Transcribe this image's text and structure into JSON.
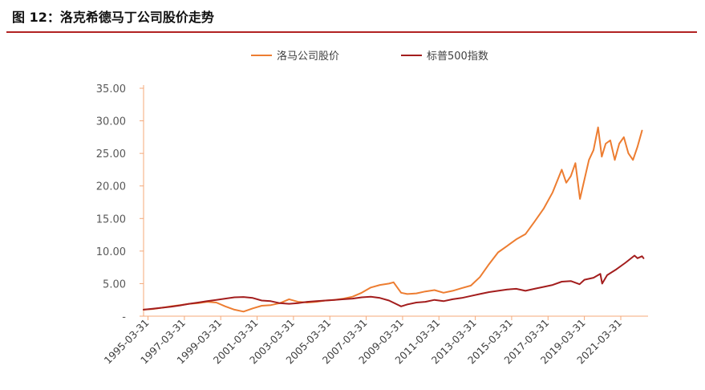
{
  "header": {
    "title": "图 12：洛克希德马丁公司股价走势",
    "rule_color": "#b22222"
  },
  "chart_data": {
    "type": "line",
    "title": "",
    "xlabel": "",
    "ylabel": "",
    "legend_position": "top-center",
    "grid": false,
    "x_ticks": [
      "1995-03-31",
      "1997-03-31",
      "1999-03-31",
      "2001-03-31",
      "2003-03-31",
      "2005-03-31",
      "2007-03-31",
      "2009-03-31",
      "2011-03-31",
      "2013-03-31",
      "2015-03-31",
      "2017-03-31",
      "2019-03-31",
      "2021-03-31"
    ],
    "y_ticks": [
      "-",
      "5.00",
      "10.00",
      "15.00",
      "20.00",
      "25.00",
      "30.00",
      "35.00"
    ],
    "ylim": [
      0,
      35
    ],
    "xlim": [
      "1995-01-01",
      "2022-09-30"
    ],
    "axis_color": "#f4a97a",
    "series": [
      {
        "name": "洛马公司股价",
        "color": "#ed7d31",
        "points": [
          [
            "1995-01-01",
            1.0
          ],
          [
            "1995-07-01",
            1.1
          ],
          [
            "1996-01-01",
            1.3
          ],
          [
            "1996-07-01",
            1.5
          ],
          [
            "1997-01-01",
            1.7
          ],
          [
            "1997-07-01",
            1.9
          ],
          [
            "1998-01-01",
            2.0
          ],
          [
            "1998-07-01",
            2.2
          ],
          [
            "1999-01-01",
            2.1
          ],
          [
            "1999-07-01",
            1.5
          ],
          [
            "2000-01-01",
            1.0
          ],
          [
            "2000-07-01",
            0.7
          ],
          [
            "2001-01-01",
            1.2
          ],
          [
            "2001-07-01",
            1.6
          ],
          [
            "2002-01-01",
            1.7
          ],
          [
            "2002-07-01",
            2.0
          ],
          [
            "2003-01-01",
            2.6
          ],
          [
            "2003-07-01",
            2.2
          ],
          [
            "2004-01-01",
            2.1
          ],
          [
            "2004-07-01",
            2.2
          ],
          [
            "2005-01-01",
            2.4
          ],
          [
            "2005-07-01",
            2.5
          ],
          [
            "2006-01-01",
            2.7
          ],
          [
            "2006-07-01",
            3.0
          ],
          [
            "2007-01-01",
            3.6
          ],
          [
            "2007-07-01",
            4.4
          ],
          [
            "2008-01-01",
            4.8
          ],
          [
            "2008-07-01",
            5.0
          ],
          [
            "2008-10-01",
            5.2
          ],
          [
            "2009-03-01",
            3.6
          ],
          [
            "2009-07-01",
            3.4
          ],
          [
            "2010-01-01",
            3.5
          ],
          [
            "2010-07-01",
            3.8
          ],
          [
            "2011-01-01",
            4.0
          ],
          [
            "2011-07-01",
            3.6
          ],
          [
            "2012-01-01",
            3.9
          ],
          [
            "2012-07-01",
            4.3
          ],
          [
            "2013-01-01",
            4.7
          ],
          [
            "2013-07-01",
            6.0
          ],
          [
            "2014-01-01",
            8.0
          ],
          [
            "2014-07-01",
            9.8
          ],
          [
            "2015-01-01",
            10.8
          ],
          [
            "2015-07-01",
            11.8
          ],
          [
            "2016-01-01",
            12.6
          ],
          [
            "2016-07-01",
            14.5
          ],
          [
            "2017-01-01",
            16.5
          ],
          [
            "2017-07-01",
            19.0
          ],
          [
            "2018-01-01",
            22.5
          ],
          [
            "2018-04-01",
            20.5
          ],
          [
            "2018-07-01",
            21.5
          ],
          [
            "2018-10-01",
            23.5
          ],
          [
            "2019-01-01",
            18.0
          ],
          [
            "2019-04-01",
            21.0
          ],
          [
            "2019-07-01",
            24.0
          ],
          [
            "2019-10-01",
            25.5
          ],
          [
            "2020-01-01",
            29.0
          ],
          [
            "2020-03-15",
            24.5
          ],
          [
            "2020-06-01",
            26.5
          ],
          [
            "2020-09-01",
            27.0
          ],
          [
            "2020-12-01",
            24.0
          ],
          [
            "2021-03-01",
            26.5
          ],
          [
            "2021-06-01",
            27.5
          ],
          [
            "2021-09-01",
            25.0
          ],
          [
            "2021-12-01",
            24.0
          ],
          [
            "2022-03-01",
            26.0
          ],
          [
            "2022-06-01",
            28.5
          ]
        ]
      },
      {
        "name": "标普500指数",
        "color": "#a31d1d",
        "points": [
          [
            "1995-01-01",
            1.0
          ],
          [
            "1995-07-01",
            1.15
          ],
          [
            "1996-01-01",
            1.3
          ],
          [
            "1996-07-01",
            1.45
          ],
          [
            "1997-01-01",
            1.65
          ],
          [
            "1997-07-01",
            1.9
          ],
          [
            "1998-01-01",
            2.1
          ],
          [
            "1998-07-01",
            2.3
          ],
          [
            "1999-01-01",
            2.5
          ],
          [
            "1999-07-01",
            2.7
          ],
          [
            "2000-01-01",
            2.9
          ],
          [
            "2000-07-01",
            2.95
          ],
          [
            "2001-01-01",
            2.8
          ],
          [
            "2001-07-01",
            2.4
          ],
          [
            "2002-01-01",
            2.3
          ],
          [
            "2002-07-01",
            2.0
          ],
          [
            "2003-01-01",
            1.9
          ],
          [
            "2003-07-01",
            2.0
          ],
          [
            "2004-01-01",
            2.2
          ],
          [
            "2004-07-01",
            2.3
          ],
          [
            "2005-01-01",
            2.4
          ],
          [
            "2005-07-01",
            2.5
          ],
          [
            "2006-01-01",
            2.6
          ],
          [
            "2006-07-01",
            2.7
          ],
          [
            "2007-01-01",
            2.9
          ],
          [
            "2007-07-01",
            3.0
          ],
          [
            "2008-01-01",
            2.8
          ],
          [
            "2008-07-01",
            2.4
          ],
          [
            "2009-03-01",
            1.5
          ],
          [
            "2009-07-01",
            1.8
          ],
          [
            "2010-01-01",
            2.1
          ],
          [
            "2010-07-01",
            2.2
          ],
          [
            "2011-01-01",
            2.5
          ],
          [
            "2011-07-01",
            2.3
          ],
          [
            "2012-01-01",
            2.6
          ],
          [
            "2012-07-01",
            2.8
          ],
          [
            "2013-01-01",
            3.1
          ],
          [
            "2013-07-01",
            3.4
          ],
          [
            "2014-01-01",
            3.7
          ],
          [
            "2014-07-01",
            3.9
          ],
          [
            "2015-01-01",
            4.1
          ],
          [
            "2015-07-01",
            4.2
          ],
          [
            "2016-01-01",
            3.9
          ],
          [
            "2016-07-01",
            4.2
          ],
          [
            "2017-01-01",
            4.5
          ],
          [
            "2017-07-01",
            4.8
          ],
          [
            "2018-01-01",
            5.3
          ],
          [
            "2018-07-01",
            5.4
          ],
          [
            "2018-12-24",
            4.9
          ],
          [
            "2019-04-01",
            5.6
          ],
          [
            "2019-10-01",
            5.9
          ],
          [
            "2020-02-15",
            6.5
          ],
          [
            "2020-03-23",
            5.0
          ],
          [
            "2020-07-01",
            6.3
          ],
          [
            "2021-01-01",
            7.2
          ],
          [
            "2021-07-01",
            8.2
          ],
          [
            "2022-01-01",
            9.3
          ],
          [
            "2022-03-01",
            8.9
          ],
          [
            "2022-06-01",
            9.2
          ],
          [
            "2022-07-01",
            8.9
          ]
        ]
      }
    ]
  }
}
